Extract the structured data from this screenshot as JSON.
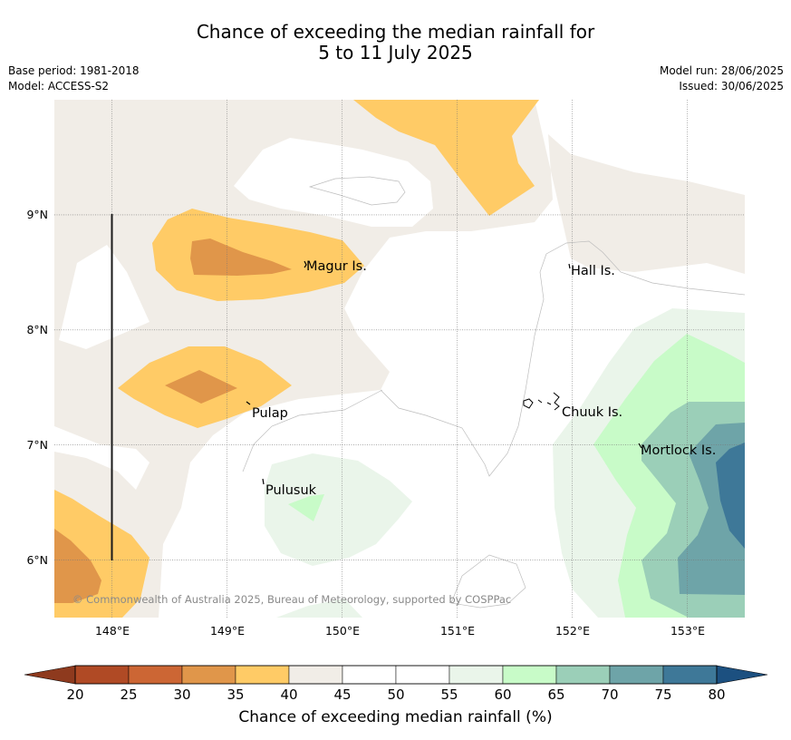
{
  "title": {
    "line1": "Chance of exceeding the median rainfall for",
    "line2": "5 to 11 July 2025"
  },
  "meta": {
    "base_period": "Base period: 1981-2018",
    "model": "Model: ACCESS-S2",
    "model_run": "Model run: 28/06/2025",
    "issued": "Issued: 30/06/2025"
  },
  "map": {
    "lon_range": [
      147.5,
      153.5
    ],
    "lat_range": [
      5.5,
      10.0
    ],
    "lon_ticks": [
      "148°E",
      "149°E",
      "150°E",
      "151°E",
      "152°E",
      "153°E"
    ],
    "lat_ticks": [
      "6°N",
      "7°N",
      "8°N",
      "9°N"
    ],
    "places": [
      "Magur Is.",
      "Hall Is.",
      "Pulap",
      "Chuuk Is.",
      "Mortlock Is.",
      "Pulusuk"
    ],
    "copyright": "© Commonwealth of Australia 2025, Bureau of Meteorology, supported by COSPPac"
  },
  "colorbar": {
    "ticks": [
      "20",
      "25",
      "30",
      "35",
      "40",
      "45",
      "50",
      "55",
      "60",
      "65",
      "70",
      "75",
      "80"
    ],
    "colors": [
      "#b04a25",
      "#cc6634",
      "#e0964a",
      "#ffcb66",
      "#f1ede7",
      "#ffffff",
      "#ffffff",
      "#eaf5ea",
      "#c8fbc8",
      "#9bcfb8",
      "#6ea4a8",
      "#3e7898"
    ],
    "low_extend_color": "#8e3a1e",
    "high_extend_color": "#1c5080",
    "label": "Chance of exceeding median rainfall (%)"
  }
}
